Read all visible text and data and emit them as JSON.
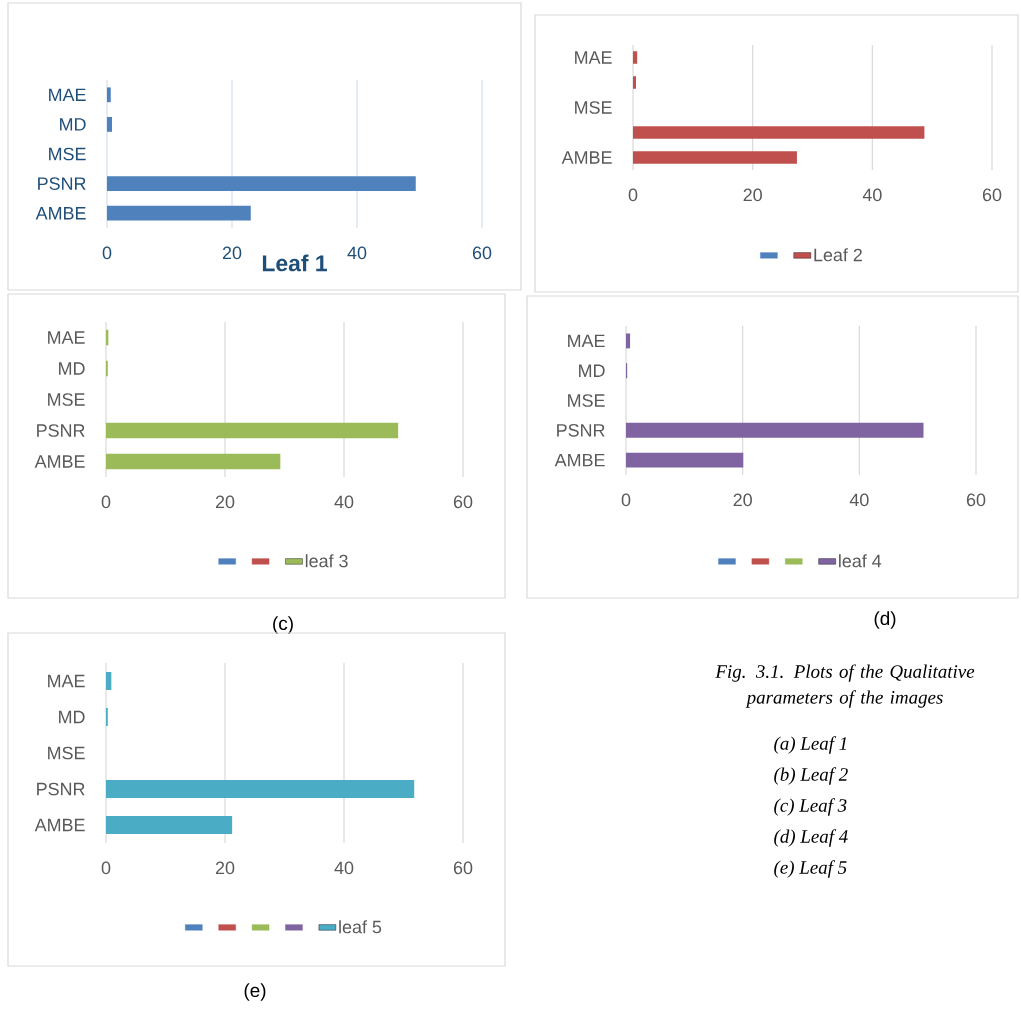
{
  "chart_data": [
    {
      "type": "bar",
      "orientation": "horizontal",
      "title": "Leaf 1",
      "categories": [
        "MAE",
        "MD",
        "MSE",
        "PSNR",
        "AMBE"
      ],
      "xlim": [
        0,
        60
      ],
      "xticks": [
        0,
        20,
        40,
        60
      ],
      "grid": "x",
      "legend": false,
      "series": [
        {
          "color": "#4f81bd",
          "values": [
            0.6,
            0.8,
            0,
            49.4,
            23.0
          ]
        }
      ]
    },
    {
      "type": "bar",
      "orientation": "horizontal",
      "categories": [
        "MAE",
        null,
        "MSE",
        null,
        "AMBE"
      ],
      "xlim": [
        0,
        60
      ],
      "xticks": [
        0,
        20,
        40,
        60
      ],
      "grid": "x",
      "legend": "bottom",
      "series": [
        {
          "color": "#4f81bd",
          "values": [
            null,
            null,
            null,
            null,
            null
          ]
        },
        {
          "name": "Leaf 2",
          "color": "#c0504d",
          "values": [
            0.7,
            0.5,
            0,
            48.7,
            27.4
          ]
        }
      ]
    },
    {
      "type": "bar",
      "orientation": "horizontal",
      "categories": [
        "MAE",
        "MD",
        "MSE",
        "PSNR",
        "AMBE"
      ],
      "xlim": [
        0,
        60
      ],
      "xticks": [
        0,
        20,
        40,
        60
      ],
      "grid": "x",
      "legend": "bottom",
      "annotations": [
        "(c)"
      ],
      "series": [
        {
          "color": "#4f81bd",
          "values": [
            null,
            null,
            null,
            null,
            null
          ]
        },
        {
          "color": "#c0504d",
          "values": [
            null,
            null,
            null,
            null,
            null
          ]
        },
        {
          "name": "leaf 3",
          "color": "#9bbb59",
          "values": [
            0.4,
            0.3,
            0,
            49.1,
            29.3
          ]
        }
      ]
    },
    {
      "type": "bar",
      "orientation": "horizontal",
      "categories": [
        "MAE",
        "MD",
        "MSE",
        "PSNR",
        "AMBE"
      ],
      "xlim": [
        0,
        60
      ],
      "xticks": [
        0,
        20,
        40,
        60
      ],
      "grid": "x",
      "legend": "bottom",
      "annotations": [
        "(d)"
      ],
      "series": [
        {
          "color": "#4f81bd",
          "values": [
            null,
            null,
            null,
            null,
            null
          ]
        },
        {
          "color": "#c0504d",
          "values": [
            null,
            null,
            null,
            null,
            null
          ]
        },
        {
          "color": "#9bbb59",
          "values": [
            null,
            null,
            null,
            null,
            null
          ]
        },
        {
          "name": "leaf 4",
          "color": "#8064a2",
          "values": [
            0.7,
            0.2,
            0,
            51.0,
            20.1
          ]
        }
      ]
    },
    {
      "type": "bar",
      "orientation": "horizontal",
      "categories": [
        "MAE",
        "MD",
        "MSE",
        "PSNR",
        "AMBE"
      ],
      "xlim": [
        0,
        60
      ],
      "xticks": [
        0,
        20,
        40,
        60
      ],
      "grid": "x",
      "legend": "bottom",
      "annotations": [
        "(e)"
      ],
      "series": [
        {
          "color": "#4f81bd",
          "values": [
            null,
            null,
            null,
            null,
            null
          ]
        },
        {
          "color": "#c0504d",
          "values": [
            null,
            null,
            null,
            null,
            null
          ]
        },
        {
          "color": "#9bbb59",
          "values": [
            null,
            null,
            null,
            null,
            null
          ]
        },
        {
          "color": "#8064a2",
          "values": [
            null,
            null,
            null,
            null,
            null
          ]
        },
        {
          "name": "leaf 5",
          "color": "#4bacc6",
          "values": [
            0.9,
            0.3,
            0,
            51.8,
            21.2
          ]
        }
      ]
    },
    {
      "type": "other",
      "title": "Fig. 3.1. Plots of the Qualitative parameters of the images",
      "annotations": [
        "(a)   Leaf 1",
        "(b)   Leaf 2",
        "(c)   Leaf 3",
        "(d)   Leaf 4",
        "(e)   Leaf 5"
      ]
    }
  ]
}
